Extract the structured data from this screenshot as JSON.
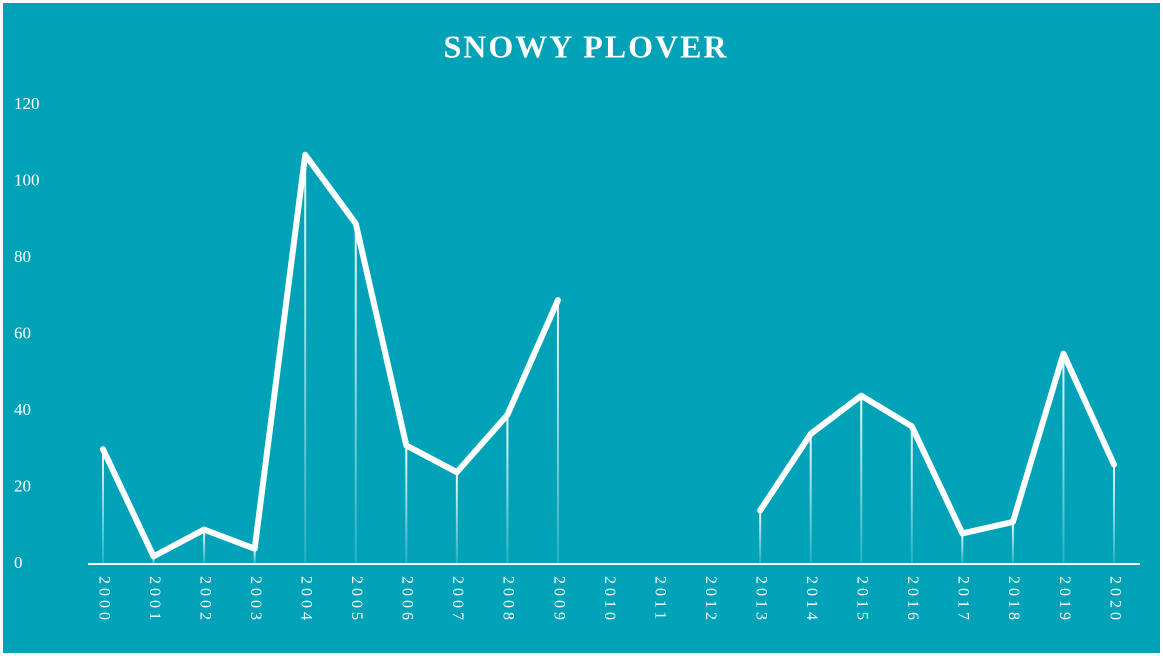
{
  "chart_data": {
    "type": "line",
    "title": "SNOWY PLOVER",
    "categories": [
      "2000",
      "2001",
      "2002",
      "2003",
      "2004",
      "2005",
      "2006",
      "2007",
      "2008",
      "2009",
      "2010",
      "2011",
      "2012",
      "2013",
      "2014",
      "2015",
      "2016",
      "2017",
      "2018",
      "2019",
      "2020"
    ],
    "values": [
      30,
      2,
      9,
      4,
      107,
      89,
      31,
      24,
      39,
      69,
      null,
      null,
      null,
      14,
      34,
      44,
      36,
      8,
      11,
      55,
      26
    ],
    "color": "#ffffff",
    "ylim": [
      0,
      120
    ],
    "yticks": [
      0,
      20,
      40,
      60,
      80,
      100,
      120
    ]
  }
}
